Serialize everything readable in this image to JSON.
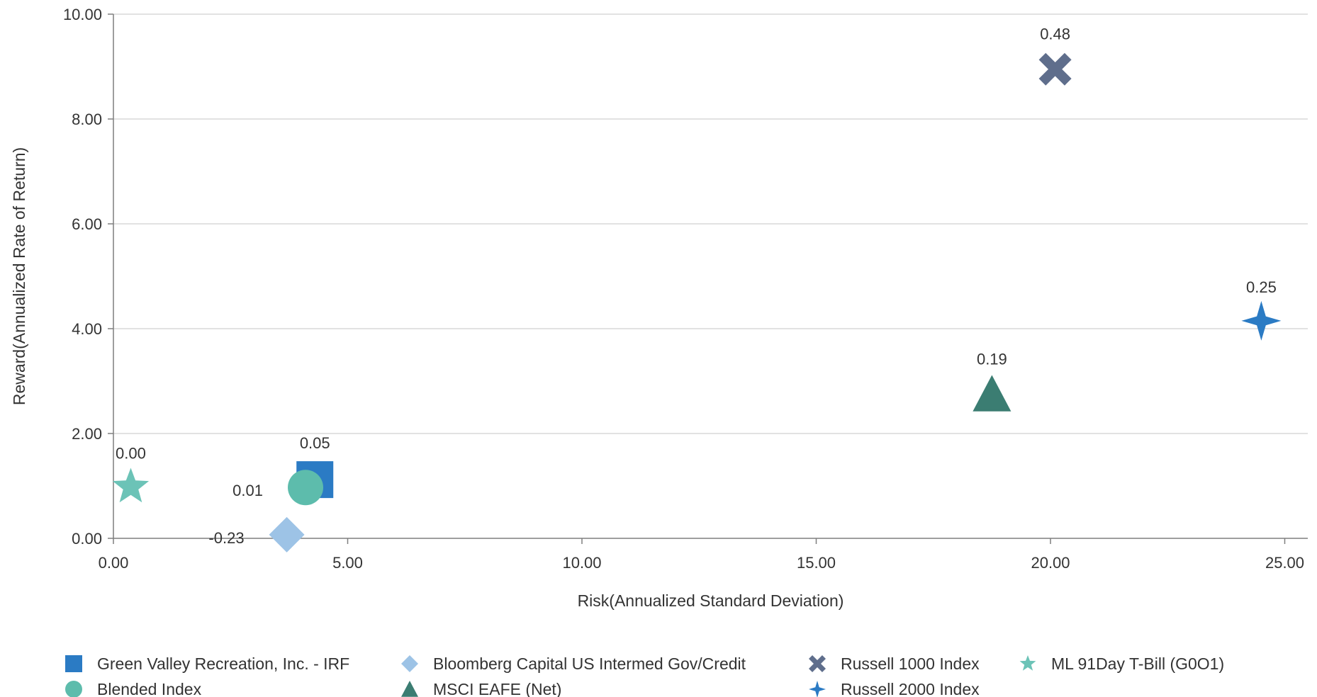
{
  "chart_data": {
    "type": "scatter",
    "xlabel": "Risk(Annualized Standard Deviation)",
    "ylabel": "Reward(Annualized Rate of Return)",
    "xlim": [
      0,
      25.5
    ],
    "ylim": [
      0,
      10
    ],
    "x_ticks": [
      "0.00",
      "5.00",
      "10.00",
      "15.00",
      "20.00",
      "25.00"
    ],
    "y_ticks": [
      "0.00",
      "2.00",
      "4.00",
      "6.00",
      "8.00",
      "10.00"
    ],
    "grid": "horizontal",
    "legend_position": "bottom",
    "series": [
      {
        "name": "Green Valley Recreation, Inc. - IRF",
        "x": 4.3,
        "y": 1.12,
        "label": "0.05",
        "marker": "square",
        "color": "#2b7bc4"
      },
      {
        "name": "Bloomberg Capital US Intermed Gov/Credit",
        "x": 3.7,
        "y": 0.07,
        "label": "-0.23",
        "marker": "diamond",
        "color": "#9dc3e6"
      },
      {
        "name": "Russell 1000 Index",
        "x": 20.1,
        "y": 8.95,
        "label": "0.48",
        "marker": "x",
        "color": "#5f6e8c"
      },
      {
        "name": "ML 91Day T-Bill (G0O1)",
        "x": 0.37,
        "y": 0.98,
        "label": "0.00",
        "marker": "star",
        "color": "#6cc3b7"
      },
      {
        "name": "Blended Index",
        "x": 4.1,
        "y": 0.97,
        "label": "0.01",
        "marker": "circle",
        "color": "#5dbcac"
      },
      {
        "name": "MSCI EAFE (Net)",
        "x": 18.75,
        "y": 2.75,
        "label": "0.19",
        "marker": "triangle",
        "color": "#3b7d72"
      },
      {
        "name": "Russell 2000 Index",
        "x": 24.5,
        "y": 4.15,
        "label": "0.25",
        "marker": "star4",
        "color": "#2b7bc4"
      }
    ]
  }
}
